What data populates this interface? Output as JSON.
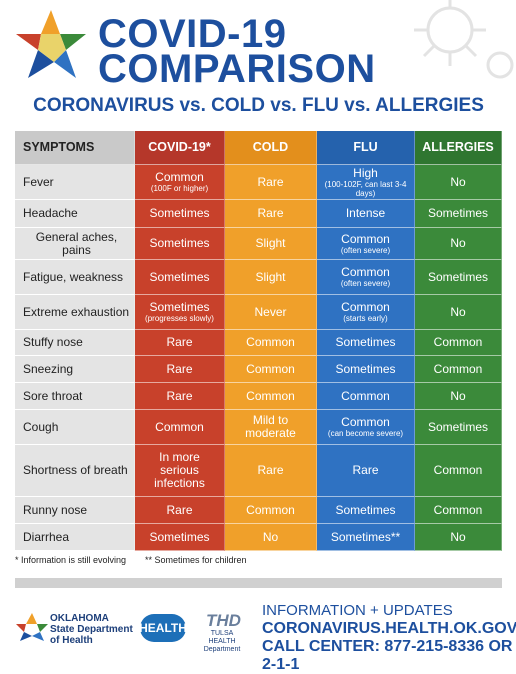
{
  "header": {
    "title_line1": "COVID-19",
    "title_line2": "COMPARISON",
    "subtitle": "CORONAVIRUS vs. COLD vs. FLU vs. ALLERGIES"
  },
  "table": {
    "columns": [
      "SYMPTOMS",
      "COVID-19*",
      "COLD",
      "FLU",
      "ALLERGIES"
    ],
    "rows": [
      {
        "symptom": "Fever",
        "cells": [
          {
            "text": "Common",
            "note": "(100F or higher)"
          },
          {
            "text": "Rare"
          },
          {
            "text": "High",
            "note": "(100-102F, can last 3-4 days)"
          },
          {
            "text": "No"
          }
        ]
      },
      {
        "symptom": "Headache",
        "cells": [
          {
            "text": "Sometimes"
          },
          {
            "text": "Rare"
          },
          {
            "text": "Intense"
          },
          {
            "text": "Sometimes"
          }
        ]
      },
      {
        "symptom": "General aches, pains",
        "cells": [
          {
            "text": "Sometimes"
          },
          {
            "text": "Slight"
          },
          {
            "text": "Common",
            "note": "(often severe)"
          },
          {
            "text": "No"
          }
        ]
      },
      {
        "symptom": "Fatigue, weakness",
        "cells": [
          {
            "text": "Sometimes"
          },
          {
            "text": "Slight"
          },
          {
            "text": "Common",
            "note": "(often severe)"
          },
          {
            "text": "Sometimes"
          }
        ]
      },
      {
        "symptom": "Extreme exhaustion",
        "cells": [
          {
            "text": "Sometimes",
            "note": "(progresses slowly)"
          },
          {
            "text": "Never"
          },
          {
            "text": "Common",
            "note": "(starts early)"
          },
          {
            "text": "No"
          }
        ]
      },
      {
        "symptom": "Stuffy nose",
        "cells": [
          {
            "text": "Rare"
          },
          {
            "text": "Common"
          },
          {
            "text": "Sometimes"
          },
          {
            "text": "Common"
          }
        ]
      },
      {
        "symptom": "Sneezing",
        "cells": [
          {
            "text": "Rare"
          },
          {
            "text": "Common"
          },
          {
            "text": "Sometimes"
          },
          {
            "text": "Common"
          }
        ]
      },
      {
        "symptom": "Sore throat",
        "cells": [
          {
            "text": "Rare"
          },
          {
            "text": "Common"
          },
          {
            "text": "Common"
          },
          {
            "text": "No"
          }
        ]
      },
      {
        "symptom": "Cough",
        "cells": [
          {
            "text": "Common"
          },
          {
            "text": "Mild to moderate"
          },
          {
            "text": "Common",
            "note": "(can become severe)"
          },
          {
            "text": "Sometimes"
          }
        ]
      },
      {
        "symptom": "Shortness of breath",
        "cells": [
          {
            "text": "In more serious infections"
          },
          {
            "text": "Rare"
          },
          {
            "text": "Rare"
          },
          {
            "text": "Common"
          }
        ]
      },
      {
        "symptom": "Runny nose",
        "cells": [
          {
            "text": "Rare"
          },
          {
            "text": "Common"
          },
          {
            "text": "Sometimes"
          },
          {
            "text": "Common"
          }
        ]
      },
      {
        "symptom": "Diarrhea",
        "cells": [
          {
            "text": "Sometimes"
          },
          {
            "text": "No"
          },
          {
            "text": "Sometimes**"
          },
          {
            "text": "No"
          }
        ]
      }
    ]
  },
  "footnotes": [
    "* Information is still evolving",
    "** Sometimes for children"
  ],
  "footer": {
    "osdh_line1": "OKLAHOMA",
    "osdh_line2": "State Department",
    "osdh_line3": "of Health",
    "badge": "HEALTH",
    "thd_logo": "THD",
    "thd_line1": "TULSA HEALTH",
    "thd_line2": "Department",
    "info_heading": "INFORMATION + UPDATES",
    "website": "CORONAVIRUS.HEALTH.OK.GOV",
    "call_center": "CALL CENTER: 877-215-8336 OR 2-1-1"
  }
}
